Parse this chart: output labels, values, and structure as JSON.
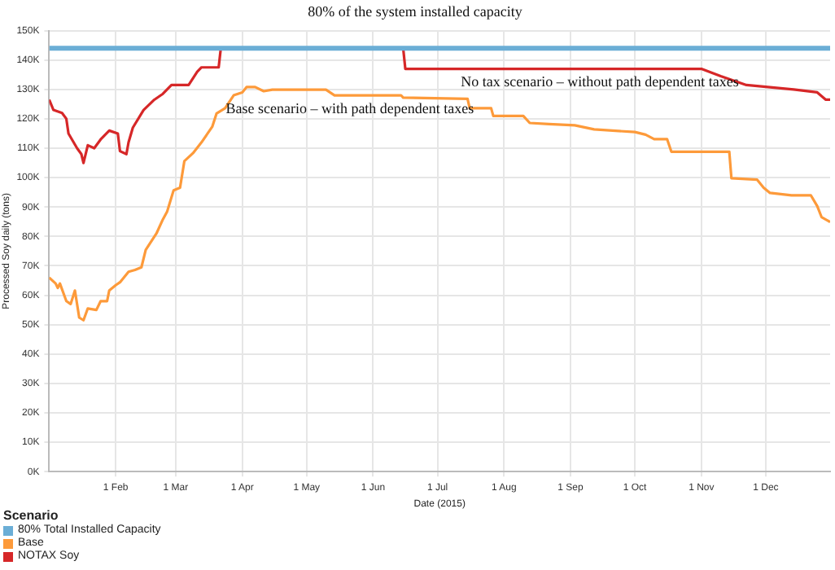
{
  "chart_data": {
    "type": "line",
    "title": "80% of the system installed capacity",
    "xlabel": "Date (2015)",
    "ylabel": "Processed Soy daily (tons)",
    "legend_title": "Scenario",
    "xlim": [
      "2015-01-01",
      "2015-12-31"
    ],
    "xticks": [
      {
        "value": "2015-02-01",
        "label": "1 Feb"
      },
      {
        "value": "2015-03-01",
        "label": "1 Mar"
      },
      {
        "value": "2015-04-01",
        "label": "1 Apr"
      },
      {
        "value": "2015-05-01",
        "label": "1 May"
      },
      {
        "value": "2015-06-01",
        "label": "1 Jun"
      },
      {
        "value": "2015-07-01",
        "label": "1 Jul"
      },
      {
        "value": "2015-08-01",
        "label": "1 Aug"
      },
      {
        "value": "2015-09-01",
        "label": "1 Sep"
      },
      {
        "value": "2015-10-01",
        "label": "1 Oct"
      },
      {
        "value": "2015-11-01",
        "label": "1 Nov"
      },
      {
        "value": "2015-12-01",
        "label": "1 Dec"
      }
    ],
    "ylim": [
      0,
      150000
    ],
    "yticks": [
      {
        "value": 0,
        "label": "0K"
      },
      {
        "value": 10000,
        "label": "10K"
      },
      {
        "value": 20000,
        "label": "20K"
      },
      {
        "value": 30000,
        "label": "30K"
      },
      {
        "value": 40000,
        "label": "40K"
      },
      {
        "value": 50000,
        "label": "50K"
      },
      {
        "value": 60000,
        "label": "60K"
      },
      {
        "value": 70000,
        "label": "70K"
      },
      {
        "value": 80000,
        "label": "80K"
      },
      {
        "value": 90000,
        "label": "90K"
      },
      {
        "value": 100000,
        "label": "100K"
      },
      {
        "value": 110000,
        "label": "110K"
      },
      {
        "value": 120000,
        "label": "120K"
      },
      {
        "value": 130000,
        "label": "130K"
      },
      {
        "value": 140000,
        "label": "140K"
      },
      {
        "value": 150000,
        "label": "150K"
      }
    ],
    "grid": true,
    "legend": "bottom left",
    "marker": "none",
    "line_style": "solid",
    "annotations": [
      "No tax scenario – without path dependent taxes",
      "Base scenario – with path dependent taxes"
    ],
    "series": [
      {
        "name": "80% Total Installed Capacity",
        "color": "#6baed6",
        "x": [
          "2015-01-01",
          "2015-12-31"
        ],
        "values": [
          144000,
          144000
        ]
      },
      {
        "name": "Base",
        "color": "#fd9a3a",
        "x": [
          "2015-01-01",
          "2015-01-04",
          "2015-01-05",
          "2015-01-06",
          "2015-01-09",
          "2015-01-11",
          "2015-01-13",
          "2015-01-15",
          "2015-01-17",
          "2015-01-19",
          "2015-01-23",
          "2015-01-25",
          "2015-01-28",
          "2015-01-29",
          "2015-02-01",
          "2015-02-03",
          "2015-02-07",
          "2015-02-10",
          "2015-02-13",
          "2015-02-15",
          "2015-02-20",
          "2015-02-23",
          "2015-02-25",
          "2015-02-28",
          "2015-03-03",
          "2015-03-05",
          "2015-03-09",
          "2015-03-13",
          "2015-03-18",
          "2015-03-20",
          "2015-03-24",
          "2015-03-28",
          "2015-04-01",
          "2015-04-03",
          "2015-04-07",
          "2015-04-11",
          "2015-04-15",
          "2015-05-10",
          "2015-05-14",
          "2015-06-14",
          "2015-06-15",
          "2015-07-15",
          "2015-07-16",
          "2015-07-26",
          "2015-07-27",
          "2015-08-10",
          "2015-08-13",
          "2015-08-22",
          "2015-09-03",
          "2015-09-12",
          "2015-10-01",
          "2015-10-06",
          "2015-10-10",
          "2015-10-16",
          "2015-10-18",
          "2015-11-14",
          "2015-11-15",
          "2015-11-27",
          "2015-11-30",
          "2015-12-03",
          "2015-12-13",
          "2015-12-22",
          "2015-12-25",
          "2015-12-27",
          "2015-12-31"
        ],
        "values": [
          66000,
          64000,
          62500,
          64000,
          58000,
          57000,
          61600,
          52400,
          51500,
          55500,
          55000,
          58000,
          58000,
          61600,
          63400,
          64400,
          68000,
          68600,
          69500,
          75400,
          81000,
          85800,
          88500,
          95700,
          96600,
          105600,
          108300,
          112000,
          117300,
          121800,
          123600,
          128000,
          129000,
          130800,
          130800,
          129400,
          129900,
          129900,
          128000,
          128000,
          127200,
          126800,
          123600,
          123600,
          121000,
          121000,
          118600,
          118200,
          117800,
          116400,
          115500,
          114600,
          113100,
          113100,
          108800,
          108800,
          99800,
          99300,
          96600,
          94800,
          94000,
          94000,
          90300,
          86600,
          84900
        ]
      },
      {
        "name": "NOTAX Soy",
        "color": "#d62728",
        "x": [
          "2015-01-01",
          "2015-01-03",
          "2015-01-07",
          "2015-01-09",
          "2015-01-10",
          "2015-01-14",
          "2015-01-16",
          "2015-01-17",
          "2015-01-19",
          "2015-01-22",
          "2015-01-25",
          "2015-01-29",
          "2015-02-02",
          "2015-02-03",
          "2015-02-06",
          "2015-02-07",
          "2015-02-09",
          "2015-02-14",
          "2015-02-19",
          "2015-02-23",
          "2015-02-27",
          "2015-03-07",
          "2015-03-11",
          "2015-03-13",
          "2015-03-21",
          "2015-03-22",
          "2015-06-15",
          "2015-06-16",
          "2015-11-01",
          "2015-11-10",
          "2015-11-22",
          "2015-12-14",
          "2015-12-25",
          "2015-12-29",
          "2015-12-31"
        ],
        "values": [
          126500,
          123000,
          122000,
          120000,
          115000,
          110000,
          108000,
          105000,
          111000,
          110000,
          113000,
          116000,
          115000,
          109000,
          108000,
          112000,
          117000,
          123000,
          126500,
          128500,
          131500,
          131500,
          136000,
          137500,
          137500,
          144000,
          144000,
          137000,
          137000,
          134500,
          131500,
          130000,
          129000,
          126500,
          126500
        ]
      }
    ]
  }
}
